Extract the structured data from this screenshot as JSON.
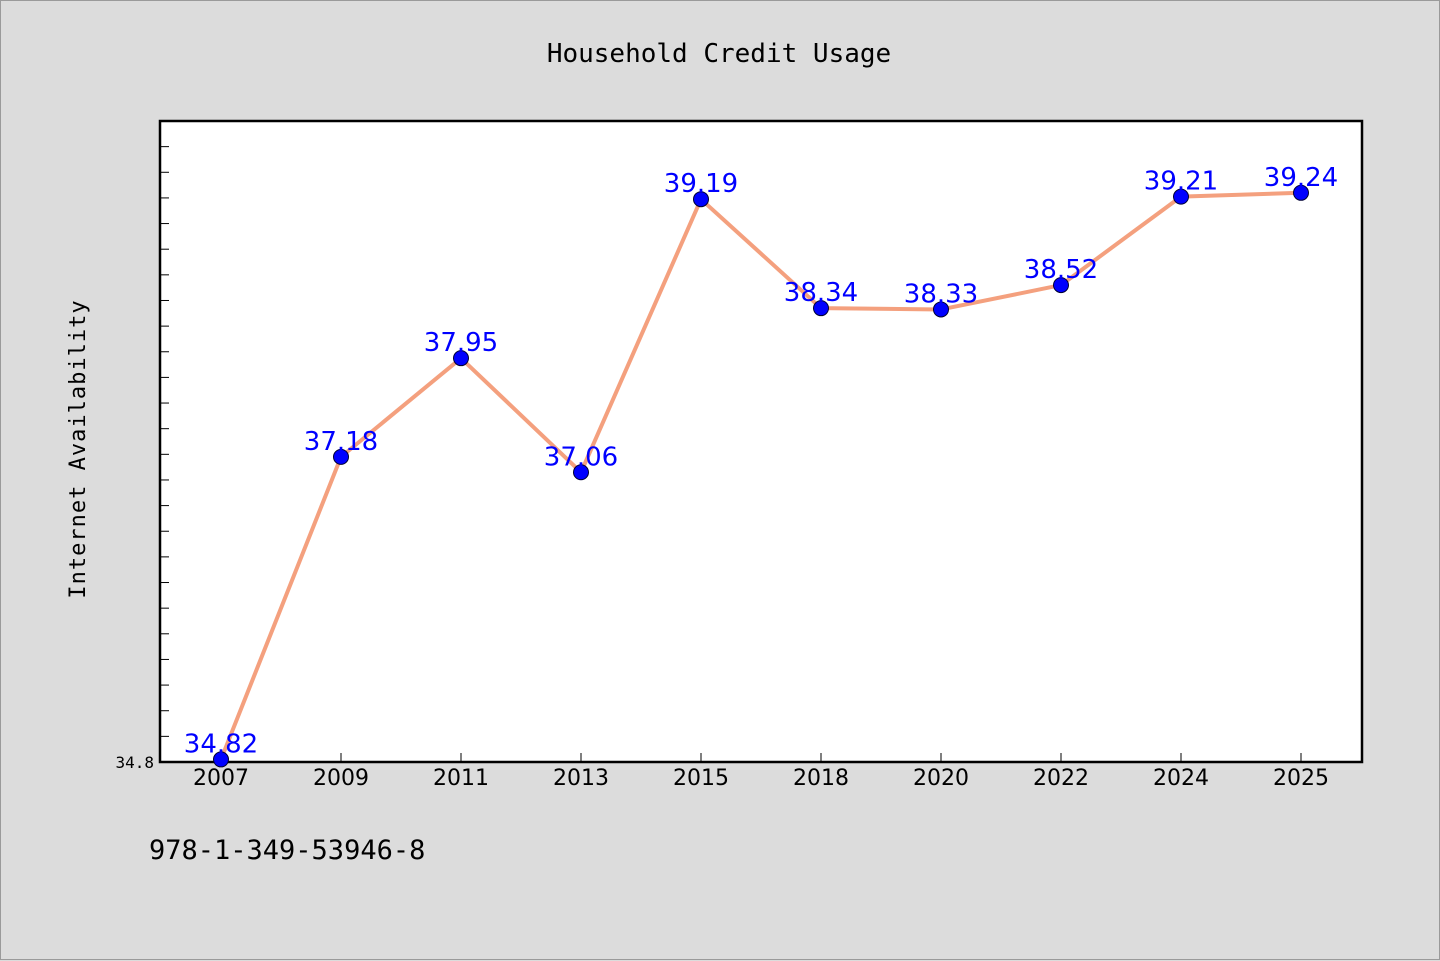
{
  "chart_data": {
    "type": "line",
    "title": "Household Credit Usage",
    "xlabel": "",
    "ylabel": "Internet Availability",
    "categories": [
      "2007",
      "2009",
      "2011",
      "2013",
      "2015",
      "2018",
      "2020",
      "2022",
      "2024",
      "2025"
    ],
    "series": [
      {
        "values": [
          34.82,
          37.18,
          37.95,
          37.06,
          39.19,
          38.34,
          38.33,
          38.52,
          39.21,
          39.24
        ]
      }
    ],
    "y_tick_labels": [
      "34.8"
    ],
    "ylim": [
      34.8,
      39.8
    ],
    "data_labels": true,
    "grid": false,
    "legend": "none",
    "colors": {
      "line": "#f4a07e",
      "marker": "#0000ff",
      "data_label": "#0000ff"
    }
  },
  "footnote": "978-1-349-53946-8"
}
